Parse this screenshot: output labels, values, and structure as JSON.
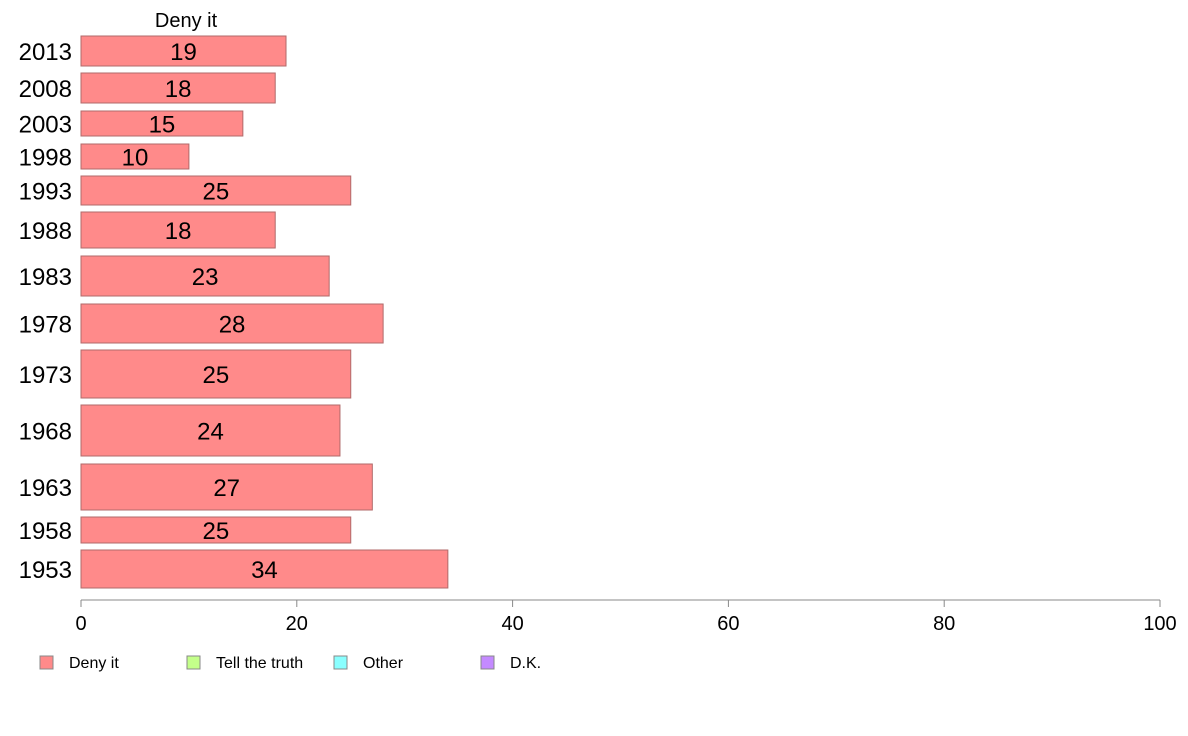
{
  "chart_data": {
    "type": "bar",
    "orientation": "horizontal",
    "title": "Deny it",
    "categories": [
      "2013",
      "2008",
      "2003",
      "1998",
      "1993",
      "1988",
      "1983",
      "1978",
      "1973",
      "1968",
      "1963",
      "1958",
      "1953"
    ],
    "values": [
      19,
      18,
      15,
      10,
      25,
      18,
      23,
      28,
      25,
      24,
      27,
      25,
      34
    ],
    "value_labels": [
      "19",
      "18",
      "15",
      "10",
      "25",
      "18",
      "23",
      "28",
      "25",
      "24",
      "27",
      "25",
      "34"
    ],
    "xlim": [
      0,
      100
    ],
    "x_ticks": [
      "0",
      "20",
      "40",
      "60",
      "80",
      "100"
    ],
    "grid": false,
    "legend_position": "bottom",
    "legend": [
      {
        "label": "Deny it",
        "color": "#ff8a8a"
      },
      {
        "label": "Tell the truth",
        "color": "#c4ff8a"
      },
      {
        "label": "Other",
        "color": "#8affff"
      },
      {
        "label": "D.K.",
        "color": "#c48aff"
      }
    ],
    "bar_color": "#ff8a8a",
    "bar_stroke": "#b06a6a"
  }
}
